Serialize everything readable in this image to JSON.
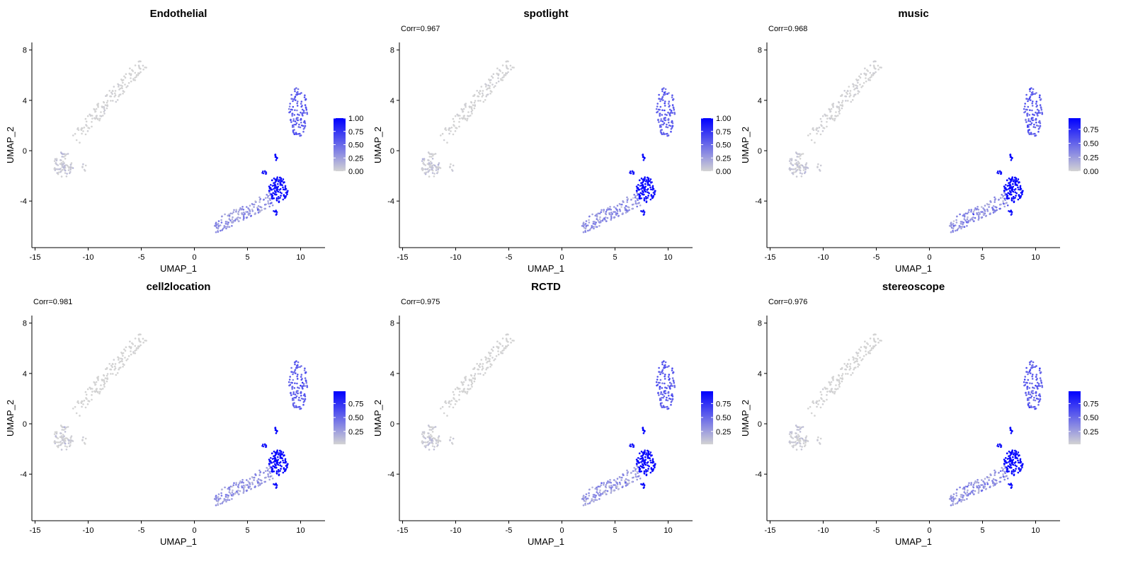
{
  "chart_data": [
    {
      "type": "scatter",
      "title": "Endothelial",
      "subtitle": "",
      "xlabel": "UMAP_1",
      "ylabel": "UMAP_2",
      "xlim": [
        -15.3,
        12.3
      ],
      "ylim": [
        -7.7,
        8.6
      ],
      "xticks": [
        -15,
        -10,
        -5,
        0,
        5,
        10
      ],
      "xtick_labels": [
        "-15",
        "-10",
        "-5",
        "0",
        "5",
        "10"
      ],
      "yticks": [
        -4,
        0,
        4,
        8
      ],
      "ytick_labels": [
        "-4",
        "0",
        "4",
        "8"
      ],
      "colorbar": {
        "min": 0,
        "max": 1.0,
        "ticks": [
          0,
          0.25,
          0.5,
          0.75,
          1.0
        ],
        "tick_labels": [
          "0.00",
          "0.25",
          "0.50",
          "0.75",
          "1.00"
        ]
      },
      "seed": 11
    },
    {
      "type": "scatter",
      "title": "spotlight",
      "subtitle": "Corr=0.967",
      "xlabel": "UMAP_1",
      "ylabel": "UMAP_2",
      "xlim": [
        -15.3,
        12.3
      ],
      "ylim": [
        -7.7,
        8.6
      ],
      "xticks": [
        -15,
        -10,
        -5,
        0,
        5,
        10
      ],
      "xtick_labels": [
        "-15",
        "-10",
        "-5",
        "0",
        "5",
        "10"
      ],
      "yticks": [
        -4,
        0,
        4,
        8
      ],
      "ytick_labels": [
        "-4",
        "0",
        "4",
        "8"
      ],
      "colorbar": {
        "min": 0,
        "max": 1.0,
        "ticks": [
          0,
          0.25,
          0.5,
          0.75,
          1.0
        ],
        "tick_labels": [
          "0.00",
          "0.25",
          "0.50",
          "0.75",
          "1.00"
        ]
      },
      "seed": 22
    },
    {
      "type": "scatter",
      "title": "music",
      "subtitle": "Corr=0.968",
      "xlabel": "UMAP_1",
      "ylabel": "UMAP_2",
      "xlim": [
        -15.3,
        12.3
      ],
      "ylim": [
        -7.7,
        8.6
      ],
      "xticks": [
        -15,
        -10,
        -5,
        0,
        5,
        10
      ],
      "xtick_labels": [
        "-15",
        "-10",
        "-5",
        "0",
        "5",
        "10"
      ],
      "yticks": [
        -4,
        0,
        4,
        8
      ],
      "ytick_labels": [
        "-4",
        "0",
        "4",
        "8"
      ],
      "colorbar": {
        "min": 0,
        "max": 0.95,
        "ticks": [
          0,
          0.25,
          0.5,
          0.75
        ],
        "tick_labels": [
          "0.00",
          "0.25",
          "0.50",
          "0.75"
        ]
      },
      "seed": 33
    },
    {
      "type": "scatter",
      "title": "cell2location",
      "subtitle": "Corr=0.981",
      "xlabel": "UMAP_1",
      "ylabel": "UMAP_2",
      "xlim": [
        -15.3,
        12.3
      ],
      "ylim": [
        -7.7,
        8.6
      ],
      "xticks": [
        -15,
        -10,
        -5,
        0,
        5,
        10
      ],
      "xtick_labels": [
        "-15",
        "-10",
        "-5",
        "0",
        "5",
        "10"
      ],
      "yticks": [
        -4,
        0,
        4,
        8
      ],
      "ytick_labels": [
        "-4",
        "0",
        "4",
        "8"
      ],
      "colorbar": {
        "min": 0.02,
        "max": 0.97,
        "ticks": [
          0.25,
          0.5,
          0.75
        ],
        "tick_labels": [
          "0.25",
          "0.50",
          "0.75"
        ]
      },
      "seed": 44
    },
    {
      "type": "scatter",
      "title": "RCTD",
      "subtitle": "Corr=0.975",
      "xlabel": "UMAP_1",
      "ylabel": "UMAP_2",
      "xlim": [
        -15.3,
        12.3
      ],
      "ylim": [
        -7.7,
        8.6
      ],
      "xticks": [
        -15,
        -10,
        -5,
        0,
        5,
        10
      ],
      "xtick_labels": [
        "-15",
        "-10",
        "-5",
        "0",
        "5",
        "10"
      ],
      "yticks": [
        -4,
        0,
        4,
        8
      ],
      "ytick_labels": [
        "-4",
        "0",
        "4",
        "8"
      ],
      "colorbar": {
        "min": 0.02,
        "max": 0.97,
        "ticks": [
          0.25,
          0.5,
          0.75
        ],
        "tick_labels": [
          "0.25",
          "0.50",
          "0.75"
        ]
      },
      "seed": 55
    },
    {
      "type": "scatter",
      "title": "stereoscope",
      "subtitle": "Corr=0.976",
      "xlabel": "UMAP_1",
      "ylabel": "UMAP_2",
      "xlim": [
        -15.3,
        12.3
      ],
      "ylim": [
        -7.7,
        8.6
      ],
      "xticks": [
        -15,
        -10,
        -5,
        0,
        5,
        10
      ],
      "xtick_labels": [
        "-15",
        "-10",
        "-5",
        "0",
        "5",
        "10"
      ],
      "yticks": [
        -4,
        0,
        4,
        8
      ],
      "ytick_labels": [
        "-4",
        "0",
        "4",
        "8"
      ],
      "colorbar": {
        "min": 0.02,
        "max": 0.97,
        "ticks": [
          0.25,
          0.5,
          0.75
        ],
        "tick_labels": [
          "0.25",
          "0.50",
          "0.75"
        ]
      },
      "seed": 66
    }
  ],
  "clusters": [
    {
      "name": "upper-left-diagonal",
      "shape": "line",
      "from": [
        -11.3,
        0.9
      ],
      "to": [
        -4.9,
        7.0
      ],
      "width": 0.55,
      "n": 150,
      "value": 0.0,
      "value_sd": 0.02
    },
    {
      "name": "left-blob",
      "shape": "blob",
      "center": [
        -12.3,
        -1.1
      ],
      "radius": [
        1.0,
        1.0
      ],
      "n": 75,
      "value": 0.05,
      "value_sd": 0.05
    },
    {
      "name": "left-blob-tail",
      "shape": "blob",
      "center": [
        -10.3,
        -1.2
      ],
      "radius": [
        0.3,
        0.4
      ],
      "n": 6,
      "value": 0.03,
      "value_sd": 0.03
    },
    {
      "name": "right-top",
      "shape": "blob",
      "center": [
        9.8,
        3.1
      ],
      "radius": [
        0.9,
        2.0
      ],
      "n": 110,
      "value": 0.55,
      "value_sd": 0.08
    },
    {
      "name": "right-low-core",
      "shape": "blob",
      "center": [
        7.9,
        -3.1
      ],
      "radius": [
        0.9,
        1.0
      ],
      "n": 110,
      "value": 0.95,
      "value_sd": 0.05
    },
    {
      "name": "right-low-tip",
      "shape": "blob",
      "center": [
        7.7,
        -0.5
      ],
      "radius": [
        0.15,
        0.3
      ],
      "n": 8,
      "value": 0.95,
      "value_sd": 0.03
    },
    {
      "name": "right-low-small",
      "shape": "blob",
      "center": [
        6.6,
        -1.7
      ],
      "radius": [
        0.25,
        0.2
      ],
      "n": 8,
      "value": 0.85,
      "value_sd": 0.05
    },
    {
      "name": "right-low-bottom",
      "shape": "blob",
      "center": [
        7.6,
        -4.9
      ],
      "radius": [
        0.2,
        0.25
      ],
      "n": 8,
      "value": 0.9,
      "value_sd": 0.05
    },
    {
      "name": "lower-tail",
      "shape": "line",
      "from": [
        1.8,
        -6.1
      ],
      "to": [
        7.3,
        -3.8
      ],
      "width": 0.55,
      "n": 150,
      "value": 0.3,
      "value_sd": 0.1
    }
  ],
  "colors": {
    "low": "#d3d3d3",
    "high": "#0000ff",
    "axis": "#000000"
  }
}
